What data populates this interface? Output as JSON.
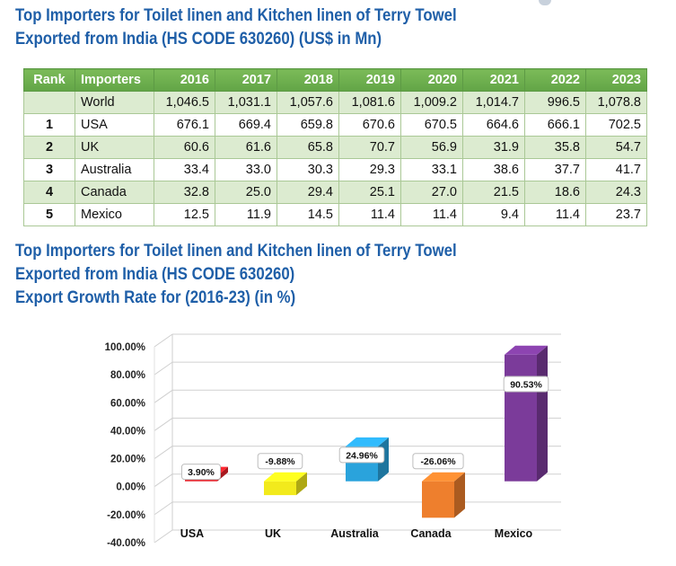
{
  "table_title": [
    "Top Importers for Toilet linen and Kitchen linen of Terry Towel",
    "Exported from India (HS CODE 630260) (US$ in Mn)"
  ],
  "table": {
    "headers": [
      "Rank",
      "Importers",
      "2016",
      "2017",
      "2018",
      "2019",
      "2020",
      "2021",
      "2022",
      "2023"
    ],
    "rows": [
      [
        "",
        "World",
        "1,046.5",
        "1,031.1",
        "1,057.6",
        "1,081.6",
        "1,009.2",
        "1,014.7",
        "996.5",
        "1,078.8"
      ],
      [
        "1",
        "USA",
        "676.1",
        "669.4",
        "659.8",
        "670.6",
        "670.5",
        "664.6",
        "666.1",
        "702.5"
      ],
      [
        "2",
        "UK",
        "60.6",
        "61.6",
        "65.8",
        "70.7",
        "56.9",
        "31.9",
        "35.8",
        "54.7"
      ],
      [
        "3",
        "Australia",
        "33.4",
        "33.0",
        "30.3",
        "29.3",
        "33.1",
        "38.6",
        "37.7",
        "41.7"
      ],
      [
        "4",
        "Canada",
        "32.8",
        "25.0",
        "29.4",
        "25.1",
        "27.0",
        "21.5",
        "18.6",
        "24.3"
      ],
      [
        "5",
        "Mexico",
        "12.5",
        "11.9",
        "14.5",
        "11.4",
        "11.4",
        "9.4",
        "11.4",
        "23.7"
      ]
    ]
  },
  "chart_title": [
    "Top Importers for Toilet linen and Kitchen linen of Terry Towel",
    "Exported from India (HS CODE 630260)",
    "Export Growth Rate for (2016-23)  (in %)"
  ],
  "chart_data": {
    "type": "bar",
    "title": "Export Growth Rate for (2016-23)  (in %)",
    "categories": [
      "USA",
      "UK",
      "Australia",
      "Canada",
      "Mexico"
    ],
    "values": [
      3.9,
      -9.88,
      24.96,
      -26.06,
      90.53
    ],
    "value_labels": [
      "3.90%",
      "-9.88%",
      "24.96%",
      "-26.06%",
      "90.53%"
    ],
    "colors": [
      "#e8222a",
      "#f2ea1c",
      "#2aa3dc",
      "#ee7f2d",
      "#7b3b9a"
    ],
    "ylim": [
      -40,
      100
    ],
    "ytick_step": 20,
    "ytick_labels": [
      "100.00%",
      "80.00%",
      "60.00%",
      "40.00%",
      "20.00%",
      "0.00%",
      "-20.00%",
      "-40.00%"
    ],
    "xlabel": "",
    "ylabel": "",
    "grid": true,
    "legend": "none"
  }
}
